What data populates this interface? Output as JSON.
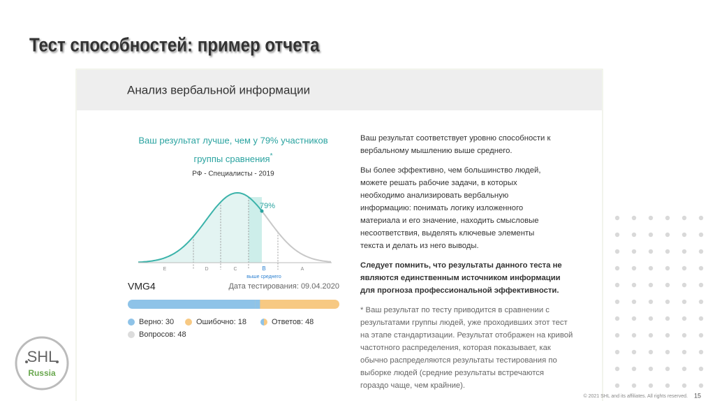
{
  "title": "Тест способностей: пример отчета",
  "card": {
    "header": "Анализ вербальной информации",
    "result": {
      "lines": [
        "Ваш результат лучше, чем у 79% участников",
        "группы сравнения"
      ],
      "asterisk": "*",
      "norm_group": "РФ - Специалисты - 2019",
      "marker_label": "79%",
      "grades": [
        "E",
        "D",
        "C",
        "B",
        "A"
      ],
      "grade_note": "выше среднего",
      "test_name": "VMG4",
      "test_date": "Дата тестирования: 09.04.2020"
    },
    "stats": [
      {
        "label": "Верно:",
        "value": 30
      },
      {
        "label": "Ошибочно:",
        "value": 18
      },
      {
        "label": "Ответов:",
        "value": 48
      },
      {
        "label": "Вопросов:",
        "value": 48
      }
    ],
    "description": {
      "paragraphs": [
        {
          "bold": false,
          "lines": [
            "Ваш результат соответствует уровню способности к",
            "вербальному мышлению выше среднего."
          ]
        },
        {
          "bold": false,
          "lines": [
            "Вы более эффективно, чем большинство людей,",
            "можете решать рабочие задачи, в которых",
            "необходимо анализировать вербальную",
            "информацию: понимать логику изложенного",
            "материала и его значение, находить смысловые",
            "несоответствия, выделять ключевые элементы",
            "текста и делать из него выводы."
          ]
        },
        {
          "bold": true,
          "lines": [
            "Следует помнить, что результаты данного теста не",
            "являются единственным источником информации",
            "для прогноза профессиональной эффективности."
          ]
        },
        {
          "bold": false,
          "note": true,
          "lines": [
            "* Ваш результат по тесту приводится в сравнении с",
            "результатами группы людей, уже проходивших этот тест",
            "на этапе стандартизации. Результат отображен на кривой",
            "частотного распределения, которая показывает, как",
            "обычно распределяются результаты тестирования по",
            "выборке людей (средние результаты встречаются",
            "гораздо чаще, чем крайние)."
          ]
        }
      ]
    }
  },
  "logo": {
    "name": "SHL",
    "region": "Russia"
  },
  "footer": {
    "copyright": "© 2021 SHL and its affiliates. All rights reserved.",
    "page": "15"
  }
}
